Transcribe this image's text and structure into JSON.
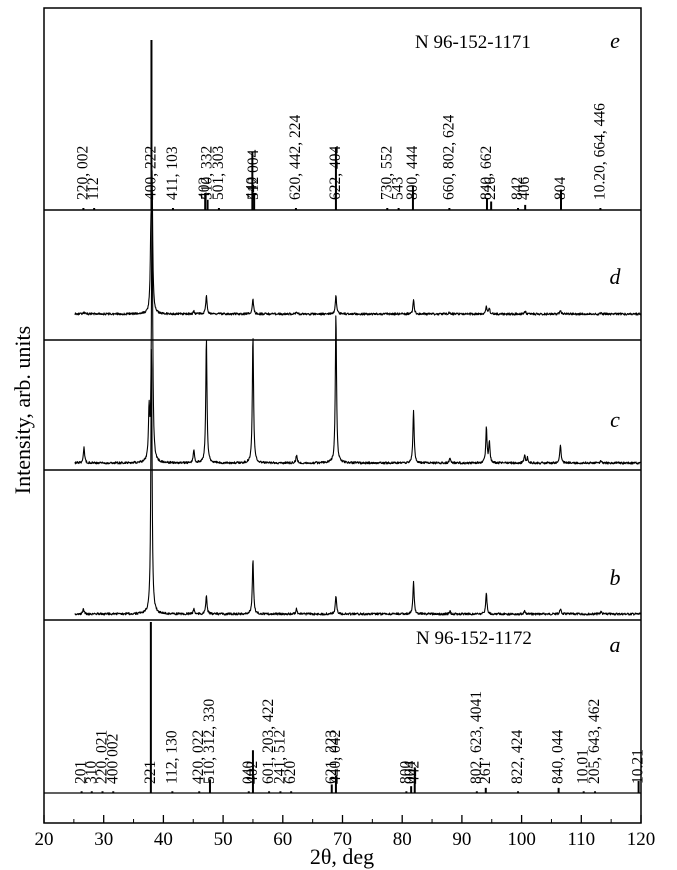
{
  "chart_data": {
    "type": "line",
    "xlabel": "2θ, deg",
    "ylabel": "Intensity, arb. units",
    "xlim": [
      20,
      120
    ],
    "xticks": [
      20,
      30,
      40,
      50,
      60,
      70,
      80,
      90,
      100,
      110,
      120
    ],
    "grid": false,
    "panels": [
      {
        "letter": "e",
        "card": "N 96-152-1171",
        "kind": "reference",
        "sticks": [
          {
            "x": 26.6,
            "h": 0.01,
            "label": "220, 002"
          },
          {
            "x": 28.4,
            "h": 0.01,
            "label": "112"
          },
          {
            "x": 38.0,
            "h": 1.0,
            "label": "400, 222"
          },
          {
            "x": 41.6,
            "h": 0.01,
            "label": "411, 103"
          },
          {
            "x": 47.0,
            "h": 0.1,
            "label": "402"
          },
          {
            "x": 47.4,
            "h": 0.06,
            "label": "510, 332"
          },
          {
            "x": 49.3,
            "h": 0.01,
            "label": "501, 303"
          },
          {
            "x": 54.9,
            "h": 0.34,
            "label": "440"
          },
          {
            "x": 55.2,
            "h": 0.1,
            "label": "512 004"
          },
          {
            "x": 62.2,
            "h": 0.01,
            "label": "620, 442, 224"
          },
          {
            "x": 68.9,
            "h": 0.37,
            "label": "622, 404"
          },
          {
            "x": 77.5,
            "h": 0.01,
            "label": "730, 552"
          },
          {
            "x": 79.4,
            "h": 0.01,
            "label": "543"
          },
          {
            "x": 81.8,
            "h": 0.14,
            "label": "800, 444"
          },
          {
            "x": 87.9,
            "h": 0.01,
            "label": "660, 802, 624"
          },
          {
            "x": 94.2,
            "h": 0.07,
            "label": "840, 662"
          },
          {
            "x": 94.9,
            "h": 0.05,
            "label": "226"
          },
          {
            "x": 99.4,
            "h": 0.01,
            "label": "842"
          },
          {
            "x": 100.6,
            "h": 0.03,
            "label": "406"
          },
          {
            "x": 106.6,
            "h": 0.12,
            "label": "804"
          },
          {
            "x": 113.2,
            "h": 0.01,
            "label": "10.20, 664, 446"
          }
        ]
      },
      {
        "letter": "d",
        "kind": "pattern",
        "peaks": [
          {
            "x": 26.7,
            "h": 0.01
          },
          {
            "x": 37.9,
            "h": 0.48
          },
          {
            "x": 38.1,
            "h": 1.0
          },
          {
            "x": 45.1,
            "h": 0.02
          },
          {
            "x": 47.2,
            "h": 0.15
          },
          {
            "x": 55.0,
            "h": 0.12
          },
          {
            "x": 62.3,
            "h": 0.02
          },
          {
            "x": 68.9,
            "h": 0.14
          },
          {
            "x": 81.9,
            "h": 0.11
          },
          {
            "x": 87.9,
            "h": 0.01
          },
          {
            "x": 94.1,
            "h": 0.06
          },
          {
            "x": 94.6,
            "h": 0.04
          },
          {
            "x": 100.6,
            "h": 0.02
          },
          {
            "x": 106.5,
            "h": 0.03
          },
          {
            "x": 113.3,
            "h": 0.01
          }
        ]
      },
      {
        "letter": "c",
        "kind": "pattern",
        "peaks": [
          {
            "x": 26.7,
            "h": 0.06
          },
          {
            "x": 37.6,
            "h": 0.18
          },
          {
            "x": 38.1,
            "h": 1.0
          },
          {
            "x": 45.1,
            "h": 0.05
          },
          {
            "x": 47.2,
            "h": 0.47
          },
          {
            "x": 55.0,
            "h": 0.48
          },
          {
            "x": 62.3,
            "h": 0.03
          },
          {
            "x": 68.9,
            "h": 0.56
          },
          {
            "x": 81.9,
            "h": 0.2
          },
          {
            "x": 88.0,
            "h": 0.02
          },
          {
            "x": 94.1,
            "h": 0.13
          },
          {
            "x": 94.6,
            "h": 0.08
          },
          {
            "x": 100.5,
            "h": 0.03
          },
          {
            "x": 101.0,
            "h": 0.02
          },
          {
            "x": 106.5,
            "h": 0.07
          },
          {
            "x": 113.3,
            "h": 0.01
          }
        ]
      },
      {
        "letter": "b",
        "kind": "pattern",
        "peaks": [
          {
            "x": 26.6,
            "h": 0.02
          },
          {
            "x": 38.0,
            "h": 1.0
          },
          {
            "x": 45.1,
            "h": 0.02
          },
          {
            "x": 47.2,
            "h": 0.07
          },
          {
            "x": 55.0,
            "h": 0.2
          },
          {
            "x": 62.3,
            "h": 0.02
          },
          {
            "x": 68.9,
            "h": 0.07
          },
          {
            "x": 81.9,
            "h": 0.12
          },
          {
            "x": 88.0,
            "h": 0.01
          },
          {
            "x": 94.1,
            "h": 0.08
          },
          {
            "x": 100.5,
            "h": 0.01
          },
          {
            "x": 106.5,
            "h": 0.02
          },
          {
            "x": 113.3,
            "h": 0.01
          }
        ]
      },
      {
        "letter": "a",
        "card": "N 96-152-1172",
        "kind": "reference",
        "sticks": [
          {
            "x": 26.3,
            "h": 0.01,
            "label": "201"
          },
          {
            "x": 28.0,
            "h": 0.01,
            "label": "310"
          },
          {
            "x": 29.8,
            "h": 0.01,
            "label": "220, 021"
          },
          {
            "x": 31.6,
            "h": 0.01,
            "label": "400 002"
          },
          {
            "x": 37.9,
            "h": 1.0,
            "label": "221"
          },
          {
            "x": 41.5,
            "h": 0.01,
            "label": "112, 130"
          },
          {
            "x": 46.0,
            "h": 0.01,
            "label": "420, 022"
          },
          {
            "x": 47.8,
            "h": 0.08,
            "label": "510, 312, 330"
          },
          {
            "x": 54.3,
            "h": 0.01,
            "label": "040"
          },
          {
            "x": 55.0,
            "h": 0.25,
            "label": "402"
          },
          {
            "x": 57.7,
            "h": 0.01,
            "label": "601, 203, 422"
          },
          {
            "x": 59.6,
            "h": 0.01,
            "label": "241, 512"
          },
          {
            "x": 61.4,
            "h": 0.01,
            "label": "620"
          },
          {
            "x": 68.2,
            "h": 0.05,
            "label": "621, 223"
          },
          {
            "x": 68.9,
            "h": 0.1,
            "label": "440, 042"
          },
          {
            "x": 80.7,
            "h": 0.01,
            "label": "800"
          },
          {
            "x": 81.5,
            "h": 0.04,
            "label": "004"
          },
          {
            "x": 82.1,
            "h": 0.15,
            "label": "442"
          },
          {
            "x": 92.5,
            "h": 0.01,
            "label": "802, 623, 4041"
          },
          {
            "x": 94.0,
            "h": 0.03,
            "label": "261"
          },
          {
            "x": 99.4,
            "h": 0.01,
            "label": "822, 424"
          },
          {
            "x": 106.2,
            "h": 0.03,
            "label": "840, 044"
          },
          {
            "x": 110.4,
            "h": 0.01,
            "label": "10.01"
          },
          {
            "x": 112.3,
            "h": 0.01,
            "label": "205, 643, 462"
          },
          {
            "x": 119.6,
            "h": 0.07,
            "label": "10.21"
          }
        ]
      }
    ]
  }
}
